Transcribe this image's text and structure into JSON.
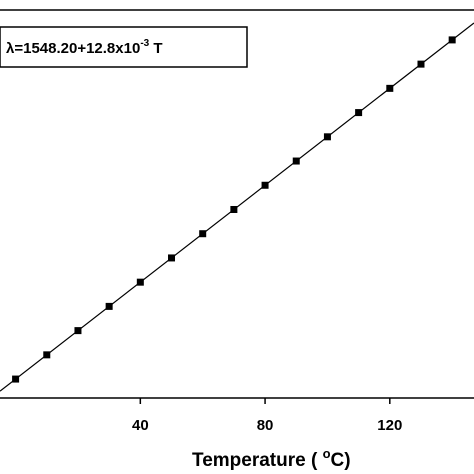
{
  "chart_data": {
    "type": "scatter",
    "xlabel_text": "Temperature ( ",
    "xlabel_sup": "o",
    "xlabel_unit": "C)",
    "ylabel": "",
    "xlim": [
      -5,
      147
    ],
    "ylim": [
      1548.1,
      1550.15
    ],
    "xticks": [
      40,
      80,
      120
    ],
    "grid": false,
    "legend": "none",
    "annotation": {
      "prefix": "λ=1548.20+12.8x10",
      "sup": "-3",
      "suffix": " T"
    },
    "series": [
      {
        "x": [
          0,
          10,
          20,
          30,
          40,
          50,
          60,
          70,
          80,
          90,
          100,
          110,
          120,
          130,
          140
        ],
        "y": [
          1548.2,
          1548.328,
          1548.456,
          1548.584,
          1548.712,
          1548.84,
          1548.968,
          1549.096,
          1549.224,
          1549.352,
          1549.48,
          1549.608,
          1549.736,
          1549.864,
          1549.992
        ]
      }
    ],
    "fit": {
      "intercept": 1548.2,
      "slope": 0.0128
    }
  }
}
